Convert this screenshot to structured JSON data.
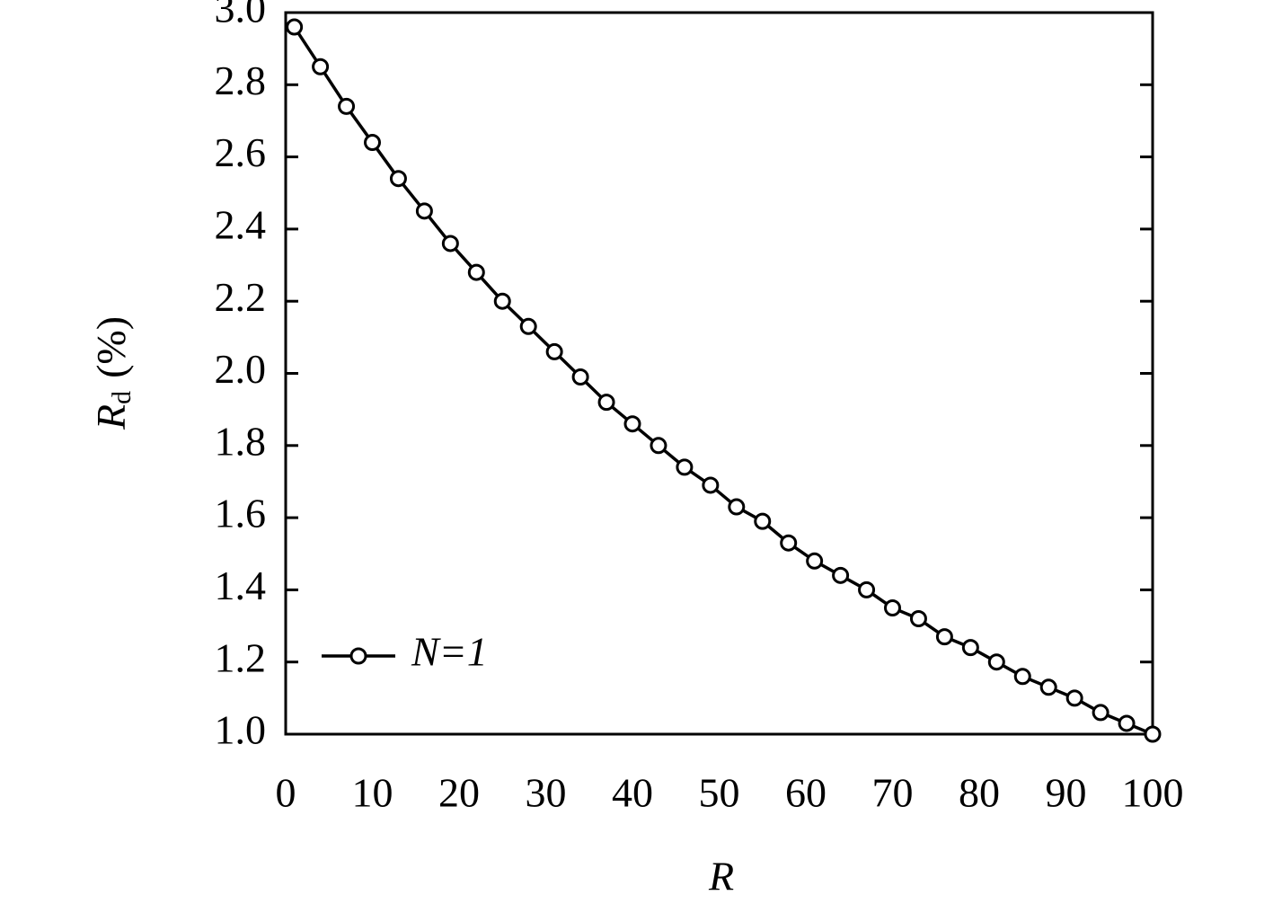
{
  "chart_data": {
    "type": "line",
    "x_label": "R",
    "y_label": {
      "symbol": "R",
      "subscript": "d",
      "unit": "(%)"
    },
    "x": [
      1,
      4,
      7,
      10,
      13,
      16,
      19,
      22,
      25,
      28,
      31,
      34,
      37,
      40,
      43,
      46,
      49,
      52,
      55,
      58,
      61,
      64,
      67,
      70,
      73,
      76,
      79,
      82,
      85,
      88,
      91,
      94,
      97,
      100
    ],
    "series": [
      {
        "name": "N=1",
        "color": "#000000",
        "marker": "circle",
        "values": [
          2.96,
          2.85,
          2.74,
          2.64,
          2.54,
          2.45,
          2.36,
          2.28,
          2.2,
          2.13,
          2.06,
          1.99,
          1.92,
          1.86,
          1.8,
          1.74,
          1.69,
          1.63,
          1.59,
          1.53,
          1.48,
          1.44,
          1.4,
          1.35,
          1.32,
          1.27,
          1.24,
          1.2,
          1.16,
          1.13,
          1.1,
          1.06,
          1.03,
          1.0
        ]
      }
    ],
    "xlim": [
      0,
      100
    ],
    "xticks": [
      0,
      10,
      20,
      30,
      40,
      50,
      60,
      70,
      80,
      90,
      100
    ],
    "ylim": [
      1.0,
      3.0
    ],
    "yticks": [
      {
        "value": 1.0,
        "label": "1.0"
      },
      {
        "value": 1.2,
        "label": "1.2"
      },
      {
        "value": 1.4,
        "label": "1.4"
      },
      {
        "value": 1.6,
        "label": "1.6"
      },
      {
        "value": 1.8,
        "label": "1.8"
      },
      {
        "value": 2.0,
        "label": "2.0"
      },
      {
        "value": 2.2,
        "label": "2.2"
      },
      {
        "value": 2.4,
        "label": "2.4"
      },
      {
        "value": 2.6,
        "label": "2.6"
      },
      {
        "value": 2.8,
        "label": "2.8"
      },
      {
        "value": 3.0,
        "label": "3.0"
      }
    ],
    "legend_position": "lower left",
    "grid": false
  }
}
